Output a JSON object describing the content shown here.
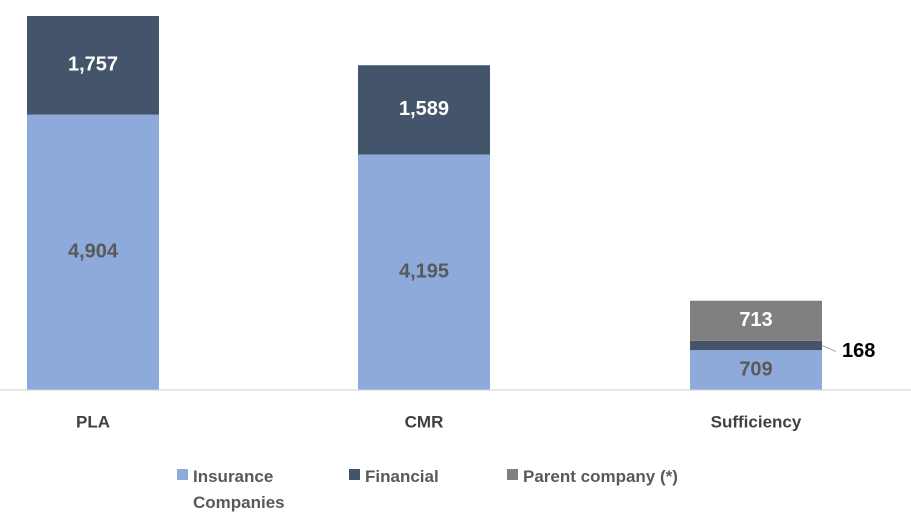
{
  "chart_data": {
    "type": "stacked_bar",
    "categories": [
      "PLA",
      "CMR",
      "Sufficiency"
    ],
    "series": [
      {
        "name": "Insurance Companies",
        "color": "#8eaadb",
        "values": [
          4904,
          4195,
          709
        ],
        "value_labels": [
          "4,904",
          "4,195",
          "709"
        ]
      },
      {
        "name": "Financial",
        "color": "#44546a",
        "values": [
          1757,
          1589,
          168
        ],
        "value_labels": [
          "1,757",
          "1,589",
          "168"
        ]
      },
      {
        "name": "Parent company (*)",
        "color": "#808080",
        "values": [
          null,
          null,
          713
        ],
        "value_labels": [
          null,
          null,
          "713"
        ]
      }
    ],
    "legend": "bottom"
  }
}
